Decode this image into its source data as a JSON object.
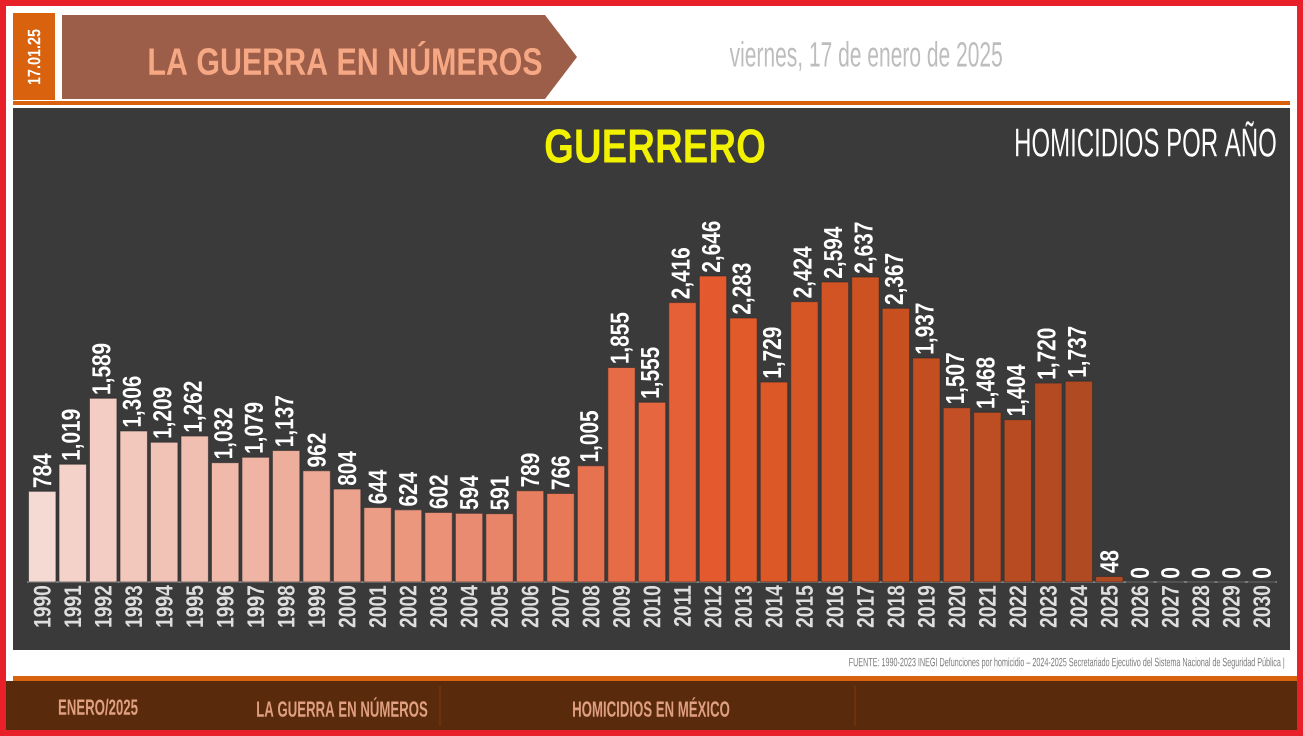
{
  "chart_data": {
    "type": "bar",
    "title": "GUERRERO",
    "subtitle": "HOMICIDIOS POR AÑO",
    "categories": [
      "1990",
      "1991",
      "1992",
      "1993",
      "1994",
      "1995",
      "1996",
      "1997",
      "1998",
      "1999",
      "2000",
      "2001",
      "2002",
      "2003",
      "2004",
      "2005",
      "2006",
      "2007",
      "2008",
      "2009",
      "2010",
      "2011",
      "2012",
      "2013",
      "2014",
      "2015",
      "2016",
      "2017",
      "2018",
      "2019",
      "2020",
      "2021",
      "2022",
      "2023",
      "2024",
      "2025",
      "2026",
      "2027",
      "2028",
      "2029",
      "2030"
    ],
    "values": [
      784,
      1019,
      1589,
      1306,
      1209,
      1262,
      1032,
      1079,
      1137,
      962,
      804,
      644,
      624,
      602,
      594,
      591,
      789,
      766,
      1005,
      1855,
      1555,
      2416,
      2646,
      2283,
      1729,
      2424,
      2594,
      2637,
      2367,
      1937,
      1507,
      1468,
      1404,
      1720,
      1737,
      48,
      0,
      0,
      0,
      0,
      0
    ],
    "value_labels": [
      "784",
      "1,019",
      "1,589",
      "1,306",
      "1,209",
      "1,262",
      "1,032",
      "1,079",
      "1,137",
      "962",
      "804",
      "644",
      "624",
      "602",
      "594",
      "591",
      "789",
      "766",
      "1,005",
      "1,855",
      "1,555",
      "2,416",
      "2,646",
      "2,283",
      "1,729",
      "2,424",
      "2,594",
      "2,637",
      "2,367",
      "1,937",
      "1,507",
      "1,468",
      "1,404",
      "1,720",
      "1,737",
      "48",
      "0",
      "0",
      "0",
      "0",
      "0"
    ],
    "colors": [
      "#f5d9d3",
      "#f4d2ca",
      "#f3cdc4",
      "#f2c8bd",
      "#f1c3b7",
      "#f0bfb1",
      "#f0b9a9",
      "#efb4a3",
      "#eeae9c",
      "#eda995",
      "#eca38d",
      "#eb9d86",
      "#eb977e",
      "#ea9177",
      "#e98b70",
      "#e88568",
      "#e87e60",
      "#e77858",
      "#e67250",
      "#e66c47",
      "#e6663f",
      "#e56037",
      "#e45a2e",
      "#e05a2a",
      "#dc5827",
      "#d75625",
      "#d25424",
      "#cd5222",
      "#c85020",
      "#c34e1f",
      "#c24f25",
      "#bd4d23",
      "#b84b21",
      "#b44a22",
      "#b04a22",
      "#b04a22",
      "#b04a22",
      "#b04a22",
      "#b04a22",
      "#b04a22",
      "#b04a22"
    ],
    "annotations": [
      "17.01.25",
      "LA GUERRA EN NÚMEROS",
      "viernes, 17 de enero de 2025",
      "FUENTE: 1990-2023 INEGI Defunciones por homicidio – 2024-2025 Secretariado Ejecutivo del Sistema Nacional de Seguridad Pública |",
      "ENERO/2025",
      "LA GUERRA EN NÚMEROS",
      "HOMICIDIOS EN MÉXICO"
    ]
  }
}
